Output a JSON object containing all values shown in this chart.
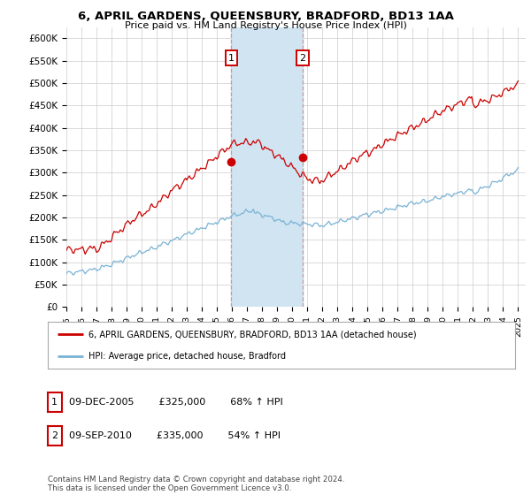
{
  "title": "6, APRIL GARDENS, QUEENSBURY, BRADFORD, BD13 1AA",
  "subtitle": "Price paid vs. HM Land Registry's House Price Index (HPI)",
  "ylabel_ticks": [
    "£0",
    "£50K",
    "£100K",
    "£150K",
    "£200K",
    "£250K",
    "£300K",
    "£350K",
    "£400K",
    "£450K",
    "£500K",
    "£550K",
    "£600K"
  ],
  "ytick_values": [
    0,
    50000,
    100000,
    150000,
    200000,
    250000,
    300000,
    350000,
    400000,
    450000,
    500000,
    550000,
    600000
  ],
  "ylim": [
    0,
    625000
  ],
  "xlim_start": 1995.0,
  "xlim_end": 2025.5,
  "sale1_x": 2005.94,
  "sale1_y": 325000,
  "sale2_x": 2010.69,
  "sale2_y": 335000,
  "legend_line1": "6, APRIL GARDENS, QUEENSBURY, BRADFORD, BD13 1AA (detached house)",
  "legend_line2": "HPI: Average price, detached house, Bradford",
  "table_row1": [
    "1",
    "09-DEC-2005",
    "£325,000",
    "68% ↑ HPI"
  ],
  "table_row2": [
    "2",
    "09-SEP-2010",
    "£335,000",
    "54% ↑ HPI"
  ],
  "footer": "Contains HM Land Registry data © Crown copyright and database right 2024.\nThis data is licensed under the Open Government Licence v3.0.",
  "hpi_color": "#7ab3d4",
  "price_color": "#cc0000",
  "highlight_color": "#d0e4f2",
  "bg_color": "#ffffff",
  "grid_color": "#cccccc",
  "vline_color": "#cc9999"
}
